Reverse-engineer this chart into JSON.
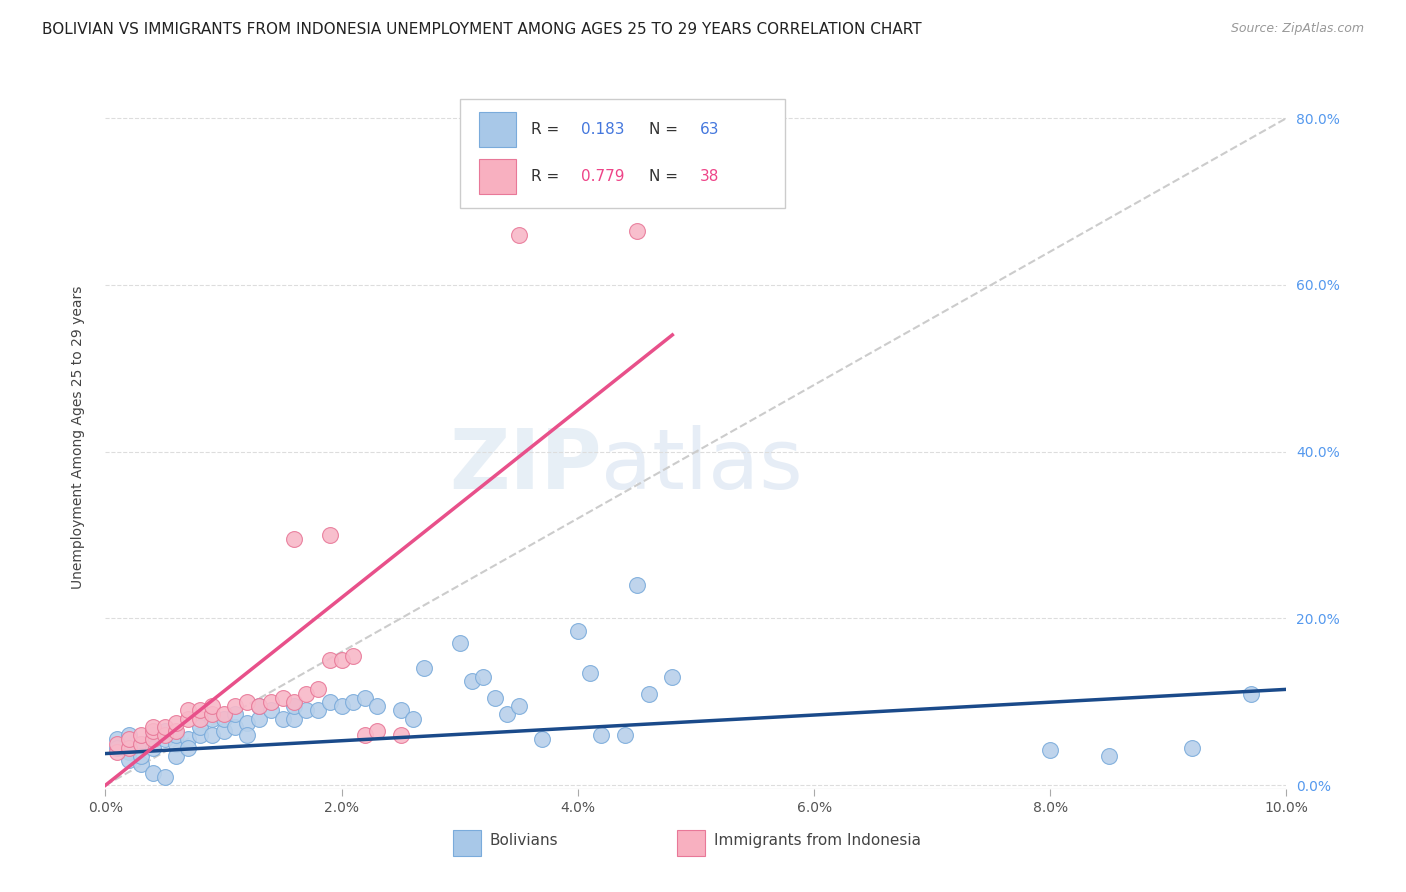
{
  "title": "BOLIVIAN VS IMMIGRANTS FROM INDONESIA UNEMPLOYMENT AMONG AGES 25 TO 29 YEARS CORRELATION CHART",
  "source": "Source: ZipAtlas.com",
  "ylabel": "Unemployment Among Ages 25 to 29 years",
  "x_ticks": [
    0.0,
    0.02,
    0.04,
    0.06,
    0.08,
    0.1
  ],
  "x_tick_labels": [
    "0.0%",
    "2.0%",
    "4.0%",
    "6.0%",
    "8.0%",
    "10.0%"
  ],
  "y_ticks": [
    0.0,
    0.2,
    0.4,
    0.6,
    0.8
  ],
  "y_tick_labels_right": [
    "0.0%",
    "20.0%",
    "40.0%",
    "60.0%",
    "80.0%"
  ],
  "xlim": [
    0.0,
    0.1
  ],
  "ylim": [
    -0.005,
    0.84
  ],
  "blue_R": "0.183",
  "blue_N": "63",
  "pink_R": "0.779",
  "pink_N": "38",
  "blue_scatter": [
    [
      0.001,
      0.055
    ],
    [
      0.001,
      0.045
    ],
    [
      0.002,
      0.06
    ],
    [
      0.002,
      0.04
    ],
    [
      0.002,
      0.03
    ],
    [
      0.003,
      0.05
    ],
    [
      0.003,
      0.025
    ],
    [
      0.003,
      0.035
    ],
    [
      0.004,
      0.06
    ],
    [
      0.004,
      0.045
    ],
    [
      0.004,
      0.015
    ],
    [
      0.005,
      0.055
    ],
    [
      0.005,
      0.065
    ],
    [
      0.005,
      0.01
    ],
    [
      0.006,
      0.05
    ],
    [
      0.006,
      0.06
    ],
    [
      0.006,
      0.035
    ],
    [
      0.007,
      0.055
    ],
    [
      0.007,
      0.045
    ],
    [
      0.008,
      0.06
    ],
    [
      0.008,
      0.07
    ],
    [
      0.009,
      0.06
    ],
    [
      0.009,
      0.08
    ],
    [
      0.01,
      0.065
    ],
    [
      0.01,
      0.08
    ],
    [
      0.011,
      0.07
    ],
    [
      0.011,
      0.085
    ],
    [
      0.012,
      0.075
    ],
    [
      0.012,
      0.06
    ],
    [
      0.013,
      0.08
    ],
    [
      0.013,
      0.095
    ],
    [
      0.014,
      0.09
    ],
    [
      0.015,
      0.08
    ],
    [
      0.016,
      0.08
    ],
    [
      0.016,
      0.095
    ],
    [
      0.017,
      0.09
    ],
    [
      0.018,
      0.09
    ],
    [
      0.019,
      0.1
    ],
    [
      0.02,
      0.095
    ],
    [
      0.021,
      0.1
    ],
    [
      0.022,
      0.105
    ],
    [
      0.023,
      0.095
    ],
    [
      0.025,
      0.09
    ],
    [
      0.026,
      0.08
    ],
    [
      0.027,
      0.14
    ],
    [
      0.03,
      0.17
    ],
    [
      0.031,
      0.125
    ],
    [
      0.032,
      0.13
    ],
    [
      0.033,
      0.105
    ],
    [
      0.034,
      0.085
    ],
    [
      0.035,
      0.095
    ],
    [
      0.037,
      0.055
    ],
    [
      0.04,
      0.185
    ],
    [
      0.041,
      0.135
    ],
    [
      0.042,
      0.06
    ],
    [
      0.044,
      0.06
    ],
    [
      0.045,
      0.24
    ],
    [
      0.046,
      0.11
    ],
    [
      0.048,
      0.13
    ],
    [
      0.08,
      0.042
    ],
    [
      0.085,
      0.035
    ],
    [
      0.092,
      0.045
    ],
    [
      0.097,
      0.11
    ]
  ],
  "pink_scatter": [
    [
      0.001,
      0.04
    ],
    [
      0.001,
      0.05
    ],
    [
      0.002,
      0.045
    ],
    [
      0.002,
      0.055
    ],
    [
      0.003,
      0.05
    ],
    [
      0.003,
      0.06
    ],
    [
      0.004,
      0.055
    ],
    [
      0.004,
      0.065
    ],
    [
      0.004,
      0.07
    ],
    [
      0.005,
      0.06
    ],
    [
      0.005,
      0.07
    ],
    [
      0.006,
      0.065
    ],
    [
      0.006,
      0.075
    ],
    [
      0.007,
      0.08
    ],
    [
      0.007,
      0.09
    ],
    [
      0.008,
      0.08
    ],
    [
      0.008,
      0.09
    ],
    [
      0.009,
      0.085
    ],
    [
      0.009,
      0.095
    ],
    [
      0.01,
      0.085
    ],
    [
      0.011,
      0.095
    ],
    [
      0.012,
      0.1
    ],
    [
      0.013,
      0.095
    ],
    [
      0.014,
      0.1
    ],
    [
      0.015,
      0.105
    ],
    [
      0.016,
      0.1
    ],
    [
      0.017,
      0.11
    ],
    [
      0.018,
      0.115
    ],
    [
      0.019,
      0.15
    ],
    [
      0.02,
      0.15
    ],
    [
      0.021,
      0.155
    ],
    [
      0.016,
      0.295
    ],
    [
      0.019,
      0.3
    ],
    [
      0.035,
      0.66
    ],
    [
      0.045,
      0.665
    ],
    [
      0.022,
      0.06
    ],
    [
      0.023,
      0.065
    ],
    [
      0.025,
      0.06
    ]
  ],
  "blue_line_x": [
    0.0,
    0.1
  ],
  "blue_line_y": [
    0.038,
    0.115
  ],
  "pink_line_x": [
    0.0,
    0.048
  ],
  "pink_line_y": [
    0.0,
    0.54
  ],
  "diag_line_x": [
    0.0,
    0.1
  ],
  "diag_line_y": [
    0.0,
    0.8
  ],
  "watermark_zip": "ZIP",
  "watermark_atlas": "atlas",
  "title_fontsize": 11,
  "axis_label_fontsize": 10,
  "tick_fontsize": 10,
  "legend_blue_color": "#a8c8e8",
  "legend_pink_color": "#f8b0c0",
  "scatter_blue_face": "#b8d0ea",
  "scatter_blue_edge": "#7aabdb",
  "scatter_pink_face": "#f8b8c8",
  "scatter_pink_edge": "#e87898",
  "line_blue_color": "#1a4a8a",
  "line_pink_color": "#e8508a",
  "diag_color": "#cccccc",
  "grid_color": "#dddddd",
  "right_tick_color": "#5599ee",
  "R_blue_color": "#4477dd",
  "N_blue_color": "#4477dd",
  "R_pink_color": "#ee4488",
  "N_pink_color": "#ee4488",
  "label_color": "#555555"
}
